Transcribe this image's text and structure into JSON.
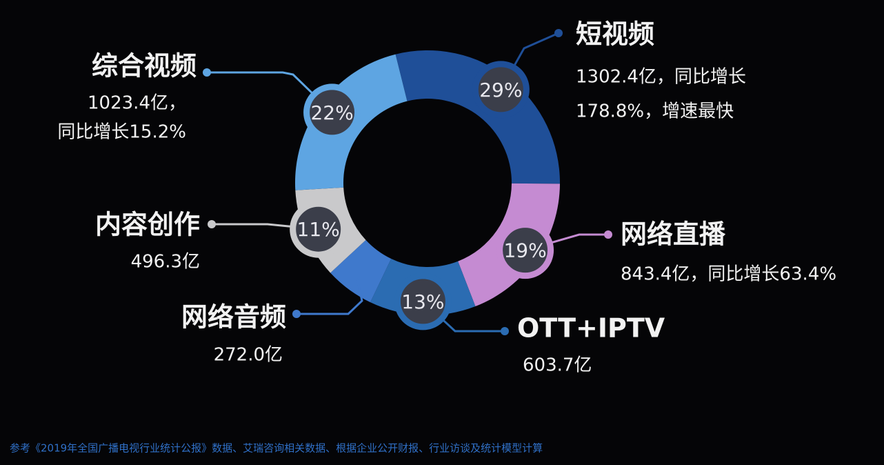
{
  "chart_data": {
    "type": "pie",
    "categories": [
      "短视频",
      "网络直播",
      "OTT+IPTV",
      "网络音频",
      "内容创作",
      "综合视频"
    ],
    "values": [
      29,
      19,
      13,
      6,
      11,
      22
    ],
    "value_labels": [
      "29%",
      "19%",
      "13%",
      null,
      "11%",
      "22%"
    ],
    "colors": [
      "#1f4f98",
      "#c58bd2",
      "#2b6cb2",
      "#3f79cc",
      "#c9c9cb",
      "#5ea5e2"
    ],
    "details": [
      [
        "1302.4亿，同比增长",
        "178.8%，增速最快"
      ],
      [
        "843.4亿，同比增长63.4%"
      ],
      [
        "603.7亿"
      ],
      [
        "272.0亿"
      ],
      [
        "496.3亿"
      ],
      [
        "1023.4亿，",
        "同比增长15.2%"
      ]
    ],
    "source": "参考《2019年全国广播电视行业统计公报》数据、艾瑞咨询相关数据、根据企业公开财报、行业访谈及统计模型计算"
  }
}
